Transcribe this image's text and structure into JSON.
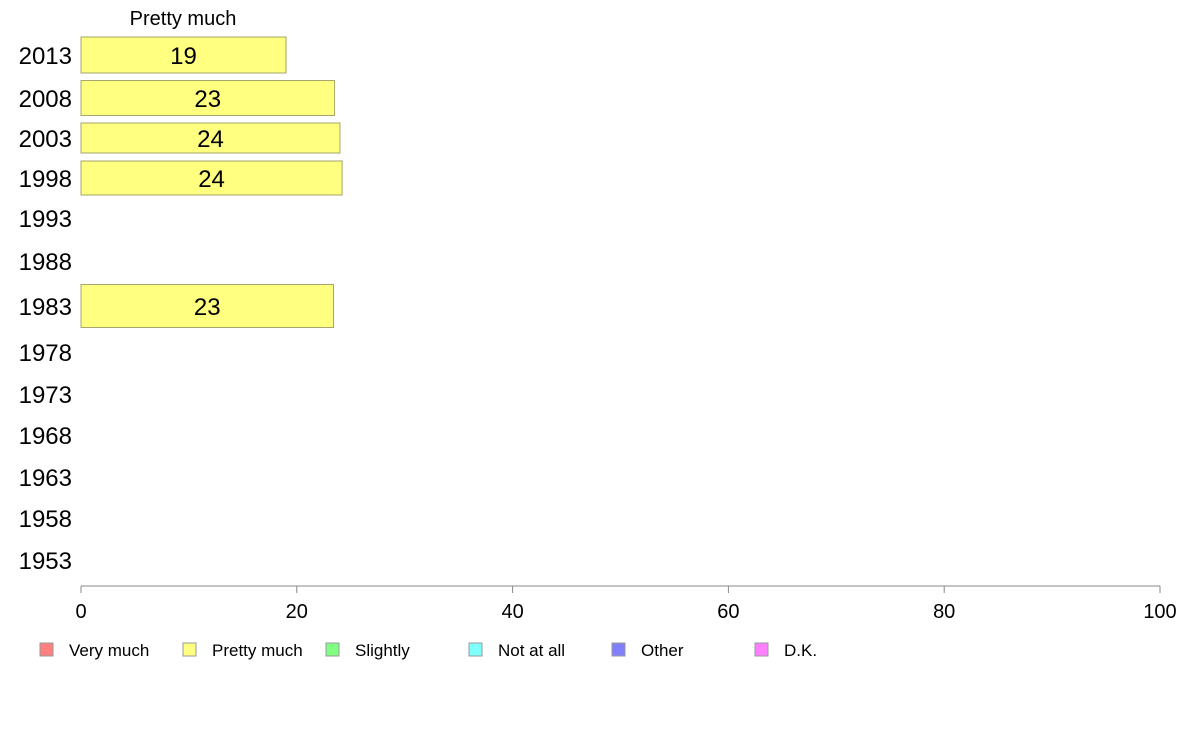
{
  "chart_data": {
    "type": "bar",
    "orientation": "horizontal",
    "column_title": "Pretty much",
    "categories": [
      "2013",
      "2008",
      "2003",
      "1998",
      "1993",
      "1988",
      "1983",
      "1978",
      "1973",
      "1968",
      "1963",
      "1958",
      "1953"
    ],
    "series": [
      {
        "name": "Pretty much",
        "color": "#ffff80",
        "values": [
          19,
          23.5,
          24,
          24.2,
          null,
          null,
          23.4,
          null,
          null,
          null,
          null,
          null,
          null
        ],
        "labels": [
          "19",
          "23",
          "24",
          "24",
          "",
          "",
          "23",
          "",
          "",
          "",
          "",
          "",
          ""
        ]
      }
    ],
    "xlim": [
      0,
      100
    ],
    "xticks": [
      "0",
      "20",
      "40",
      "60",
      "80",
      "100"
    ],
    "grid": false,
    "legend_position": "bottom",
    "legend": [
      {
        "label": "Very much",
        "color": "#ff8080"
      },
      {
        "label": "Pretty much",
        "color": "#ffff80"
      },
      {
        "label": "Slightly",
        "color": "#80ff80"
      },
      {
        "label": "Not at all",
        "color": "#80ffff"
      },
      {
        "label": "Other",
        "color": "#8080ff"
      },
      {
        "label": "D.K.",
        "color": "#ff80ff"
      }
    ]
  }
}
